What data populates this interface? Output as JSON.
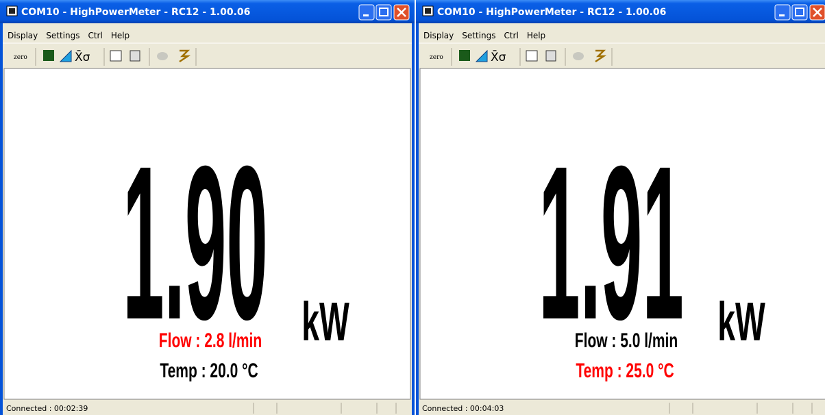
{
  "windows": [
    {
      "title": "COM10 - HighPowerMeter - RC12 - 1.00.06",
      "menu": [
        "Display",
        "Settings",
        "Ctrl",
        "Help"
      ],
      "toolbar": {
        "zero": "zero",
        "stats": "X̄σ"
      },
      "reading": "1.90",
      "unit": "kW",
      "flow": "Flow : 2.8 l/min",
      "flow_color": "#ff0000",
      "temp": "Temp : 20.0 °C",
      "temp_color": "#000000",
      "status": "Connected : 00:02:39"
    },
    {
      "title": "COM10 - HighPowerMeter - RC12 - 1.00.06",
      "menu": [
        "Display",
        "Settings",
        "Ctrl",
        "Help"
      ],
      "toolbar": {
        "zero": "zero",
        "stats": "X̄σ"
      },
      "reading": "1.91",
      "unit": "kW",
      "flow": "Flow : 5.0 l/min",
      "flow_color": "#000000",
      "temp": "Temp : 25.0 °C",
      "temp_color": "#ff0000",
      "status": "Connected : 00:04:03"
    }
  ]
}
